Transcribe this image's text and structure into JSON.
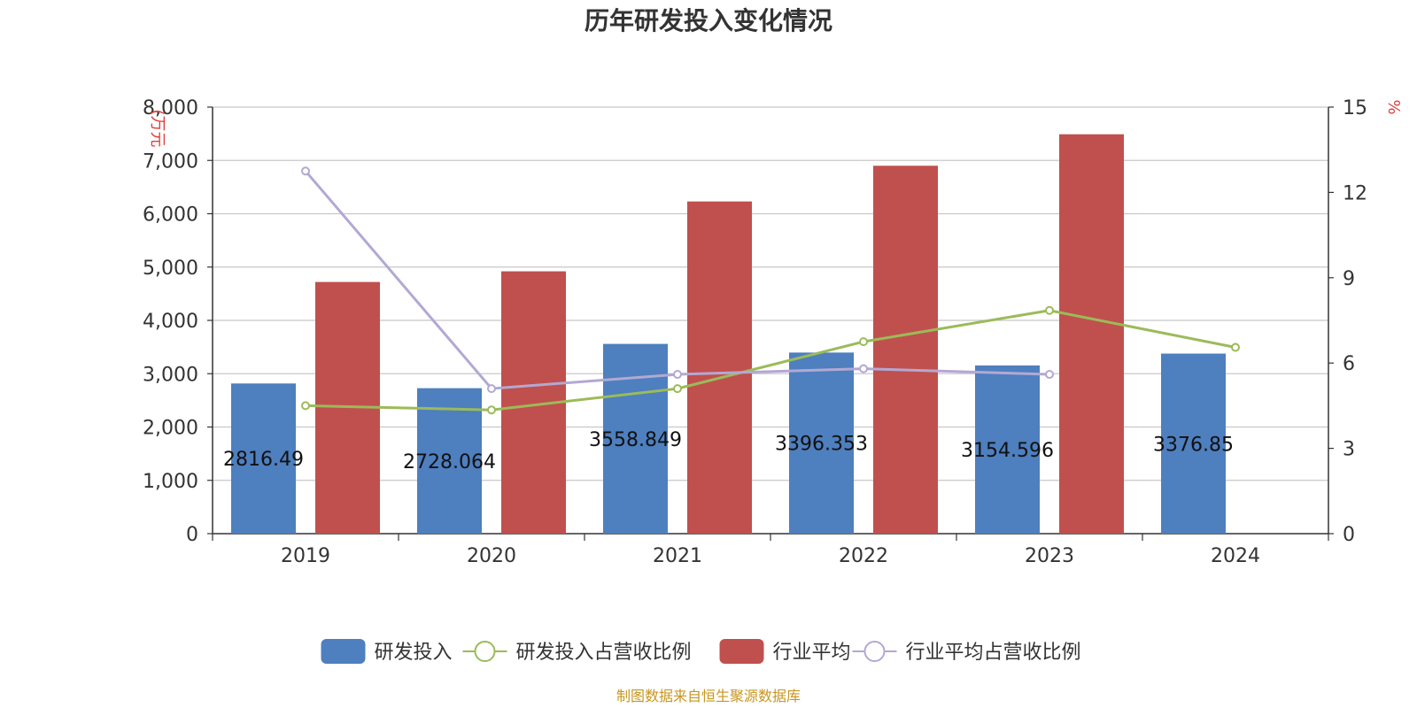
{
  "chart_data": {
    "type": "bar",
    "title": "历年研发投入变化情况",
    "categories": [
      "2019",
      "2020",
      "2021",
      "2022",
      "2023",
      "2024"
    ],
    "y_left": {
      "unit": "(万元",
      "ylim": [
        0,
        8000
      ],
      "ticks": [
        "0",
        "1,000",
        "2,000",
        "3,000",
        "4,000",
        "5,000",
        "6,000",
        "7,000",
        "8,000"
      ]
    },
    "y_right": {
      "unit": "%",
      "ylim": [
        0,
        15
      ],
      "ticks": [
        "0",
        "3",
        "6",
        "9",
        "12",
        "15"
      ]
    },
    "series": [
      {
        "name": "研发投入",
        "type": "bar",
        "axis": "left",
        "color": "#4e7fbf",
        "values": [
          2816.49,
          2728.064,
          3558.849,
          3396.353,
          3154.596,
          3376.85
        ],
        "labels": [
          "2816.49",
          "2728.064",
          "3558.849",
          "3396.353",
          "3154.596",
          "3376.85"
        ]
      },
      {
        "name": "研发投入占营收比例",
        "type": "line",
        "axis": "right",
        "color": "#9bbb59",
        "values": [
          4.5,
          4.35,
          5.1,
          6.75,
          7.85,
          6.55
        ]
      },
      {
        "name": "行业平均",
        "type": "bar",
        "axis": "left",
        "color": "#c0504d",
        "values": [
          4720,
          4920,
          6230,
          6900,
          7490,
          null
        ]
      },
      {
        "name": "行业平均占营收比例",
        "type": "line",
        "axis": "right",
        "color": "#b3a8d3",
        "values": [
          12.75,
          5.1,
          5.6,
          5.8,
          5.6,
          null
        ]
      }
    ],
    "grid": true,
    "legend_position": "bottom"
  },
  "source": "制图数据来自恒生聚源数据库"
}
